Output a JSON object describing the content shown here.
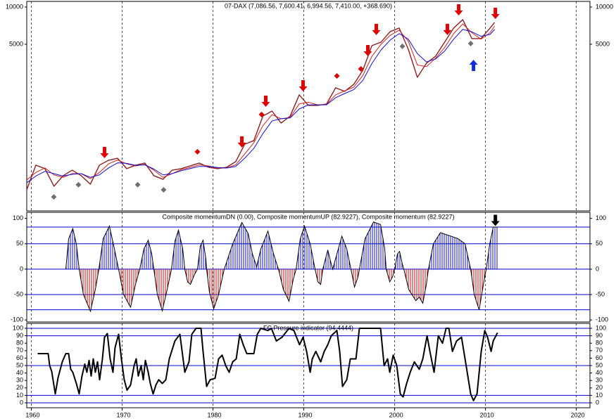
{
  "chart_data": [
    {
      "type": "line",
      "title": "07-DAX (7,086.56, 7,600.41, 6,994.56, 7,410.00, +368.690)",
      "log": true,
      "ylim": [
        225,
        11100
      ],
      "yticks": [
        5000,
        10000
      ],
      "x": [
        1959.5,
        1960.5,
        1961.5,
        1962.5,
        1963.5,
        1964.5,
        1965.5,
        1966.5,
        1967.5,
        1968.5,
        1969.5,
        1970.5,
        1971.5,
        1972.5,
        1973.5,
        1974.5,
        1975.5,
        1976.5,
        1977.5,
        1978.5,
        1979.5,
        1980.5,
        1981.5,
        1982.5,
        1983.5,
        1984.5,
        1985.5,
        1986.5,
        1987.5,
        1988.5,
        1989.5,
        1990.5,
        1991.5,
        1992.5,
        1993.5,
        1994.5,
        1995.5,
        1996.5,
        1997.5,
        1998.5,
        1999.5,
        2000.5,
        2001.5,
        2002.5,
        2003.5,
        2004.5,
        2005.5,
        2006.5,
        2007.5,
        2008.5,
        2009.5,
        2010.5,
        2011.0
      ],
      "series": [
        {
          "color": "#8b2020",
          "values": [
            333,
            527,
            494,
            356,
            433,
            480,
            433,
            370,
            527,
            577,
            600,
            494,
            527,
            548,
            433,
            405,
            480,
            494,
            520,
            548,
            507,
            494,
            507,
            562,
            780,
            832,
            1315,
            1442,
            1154,
            1315,
            1950,
            1603,
            1603,
            1644,
            2224,
            2082,
            2371,
            3083,
            4875,
            5200,
            6320,
            6760,
            4560,
            2704,
            3512,
            4000,
            5200,
            6760,
            7905,
            5550,
            5550,
            6760,
            7500
          ]
        },
        {
          "color": "#d02020",
          "values": [
            400,
            460,
            500,
            440,
            420,
            450,
            450,
            410,
            460,
            540,
            580,
            540,
            520,
            535,
            480,
            420,
            450,
            485,
            505,
            530,
            520,
            500,
            500,
            530,
            650,
            800,
            1100,
            1350,
            1250,
            1280,
            1650,
            1700,
            1620,
            1630,
            1950,
            2100,
            2250,
            2800,
            4000,
            5000,
            5900,
            6500,
            5300,
            3400,
            3300,
            3850,
            4700,
            6100,
            7300,
            6200,
            5500,
            6200,
            7000
          ]
        },
        {
          "color": "#1010d0",
          "values": [
            380,
            430,
            470,
            450,
            430,
            445,
            450,
            420,
            440,
            500,
            550,
            545,
            525,
            530,
            490,
            440,
            450,
            475,
            495,
            515,
            515,
            505,
            500,
            515,
            600,
            720,
            950,
            1200,
            1250,
            1270,
            1500,
            1620,
            1620,
            1620,
            1850,
            2000,
            2150,
            2550,
            3500,
            4500,
            5400,
            6100,
            5500,
            4200,
            3600,
            3800,
            4400,
            5500,
            6600,
            6300,
            5800,
            6000,
            6600
          ]
        }
      ],
      "signals": [
        {
          "shape": "arrow-down",
          "color": "#e00000",
          "x": [
            1968.06,
            1983.18,
            1985.81,
            1989.92,
            1997.98,
            1997.05,
            2005.81,
            2007.05,
            2011.09
          ],
          "values": [
            600,
            731,
            1560,
            2080,
            5930,
            4000,
            5930,
            8550,
            8000
          ]
        },
        {
          "shape": "arrow-up",
          "color": "#1030e0",
          "x": [
            2008.68
          ],
          "values": [
            3750
          ]
        },
        {
          "shape": "diamond",
          "color": "#707070",
          "x": [
            1962.48,
            1965.19,
            1971.71,
            1974.57,
            2000.85,
            2008.37
          ],
          "values": [
            292,
            366,
            366,
            333,
            4810,
            5070
          ]
        },
        {
          "shape": "diamond",
          "color": "#e00000",
          "x": [
            1978.29,
            1985.35,
            1993.64,
            1996.28
          ],
          "values": [
            676,
            1353,
            2773,
            3162
          ]
        }
      ]
    },
    {
      "type": "area",
      "title": "Composite momentumDN (0.00), Composite momentumUP (82.9227), Composite momentum (82.9227)",
      "ylim": [
        -104,
        112
      ],
      "yticks": [
        100,
        50,
        0,
        -50,
        -100
      ],
      "levels": [
        83,
        50,
        0,
        -50,
        -80
      ],
      "level_color": "#0000cc",
      "x": [
        1963.8,
        1964.11,
        1964.57,
        1964.96,
        1965.27,
        1965.74,
        1966.51,
        1967.05,
        1967.44,
        1967.91,
        1968.6,
        1969.15,
        1969.61,
        1970.16,
        1970.93,
        1971.47,
        1971.94,
        1972.4,
        1972.87,
        1973.26,
        1973.49,
        1973.88,
        1974.42,
        1974.96,
        1975.43,
        1975.81,
        1976.2,
        1976.67,
        1976.9,
        1977.21,
        1977.52,
        1977.98,
        1978.29,
        1978.6,
        1978.91,
        1979.22,
        1979.3,
        1979.61,
        1980.08,
        1980.62,
        1981.24,
        1982.17,
        1983.18,
        1983.88,
        1984.34,
        1984.81,
        1985.27,
        1986.05,
        1986.67,
        1987.21,
        1987.75,
        1988.37,
        1988.84,
        1989.15,
        1989.61,
        1990.08,
        1990.7,
        1991.24,
        1991.55,
        1991.86,
        1992.09,
        1992.64,
        1993.02,
        1993.18,
        1993.64,
        1994.19,
        1994.73,
        1995.19,
        1995.58,
        1995.97,
        1996.12,
        1996.74,
        1997.67,
        1998.45,
        1998.91,
        1999.07,
        1999.46,
        1999.77,
        2000.0,
        2000.31,
        2000.54,
        2000.85,
        2001.01,
        2001.55,
        2002.33,
        2002.71,
        2003.1,
        2003.49,
        2003.72,
        2004.26,
        2005.04,
        2006.2,
        2006.98,
        2007.75,
        2008.37,
        2008.76,
        2009.3,
        2009.77,
        2010.08,
        2010.47,
        2010.85,
        2011.32
      ],
      "series": [
        {
          "color": "#000000",
          "up_color": "#1010c0",
          "down_color": "#c01010",
          "values": [
            0,
            60,
            80,
            50,
            0,
            -50,
            -83,
            -40,
            0,
            60,
            85,
            40,
            0,
            -50,
            -75,
            -30,
            0,
            40,
            57,
            30,
            0,
            -50,
            -82,
            -40,
            0,
            55,
            77,
            40,
            0,
            -25,
            -30,
            -10,
            0,
            45,
            57,
            20,
            0,
            -45,
            -78,
            -50,
            0,
            50,
            92,
            70,
            30,
            5,
            40,
            75,
            30,
            0,
            -40,
            -63,
            -20,
            0,
            60,
            85,
            50,
            0,
            -25,
            -30,
            0,
            38,
            10,
            0,
            30,
            65,
            40,
            0,
            -35,
            -15,
            0,
            60,
            93,
            88,
            40,
            0,
            -25,
            -15,
            0,
            30,
            35,
            10,
            0,
            -40,
            -62,
            -55,
            -67,
            -30,
            0,
            50,
            72,
            65,
            60,
            50,
            0,
            -50,
            -80,
            -30,
            0,
            50,
            83,
            83
          ]
        }
      ],
      "signals": [
        {
          "shape": "arrow-down",
          "color": "#000000",
          "x": [
            2011.09
          ],
          "values": [
            85
          ]
        }
      ]
    },
    {
      "type": "line",
      "title": "FC Pressure indicator (94.4444)",
      "ylim": [
        -6.6,
        106.6
      ],
      "yticks": [
        100,
        90,
        80,
        70,
        60,
        50,
        40,
        30,
        20,
        10,
        0
      ],
      "levels": [
        100,
        90,
        50,
        10,
        0
      ],
      "level_color": "#0000cc",
      "xlim": [
        1959.5,
        2021.5
      ],
      "xticks": [
        1960,
        1970,
        1980,
        1990,
        2000,
        2010,
        2020
      ],
      "x": [
        1960.7,
        1961.86,
        1962.02,
        1962.25,
        1962.64,
        1962.95,
        1963.41,
        1963.8,
        1964.11,
        1964.34,
        1964.57,
        1964.96,
        1965.27,
        1965.58,
        1965.89,
        1966.12,
        1966.36,
        1966.59,
        1966.82,
        1967.05,
        1967.29,
        1967.52,
        1967.83,
        1968.06,
        1968.37,
        1968.68,
        1968.99,
        1969.22,
        1969.61,
        1969.92,
        1970.23,
        1970.54,
        1970.93,
        1971.32,
        1971.55,
        1971.78,
        1972.09,
        1972.33,
        1972.56,
        1972.87,
        1973.1,
        1973.41,
        1973.72,
        1974.03,
        1974.42,
        1974.81,
        1975.19,
        1975.81,
        1976.36,
        1976.9,
        1977.36,
        1977.67,
        1978.14,
        1978.68,
        1978.91,
        1979.3,
        1979.69,
        1980.23,
        1980.62,
        1981.01,
        1981.4,
        1981.78,
        1982.17,
        1982.56,
        1982.95,
        1983.33,
        1983.72,
        1984.5,
        1984.88,
        1985.27,
        1986.05,
        1986.43,
        1986.98,
        1987.6,
        1988.37,
        1988.91,
        1989.53,
        1989.92,
        1990.31,
        1990.7,
        1990.93,
        1991.32,
        1991.86,
        1992.25,
        1992.64,
        1993.02,
        1993.64,
        1993.95,
        1994.26,
        1994.73,
        1995.12,
        1995.74,
        1996.12,
        1998.45,
        1998.84,
        1999.22,
        1999.46,
        1999.84,
        2000.23,
        2000.62,
        2000.93,
        2001.32,
        2001.71,
        2002.17,
        2002.71,
        2003.1,
        2003.57,
        2003.88,
        2004.34,
        2004.81,
        2005.27,
        2005.66,
        2005.97,
        2006.36,
        2006.82,
        2007.36,
        2007.75,
        2008.37,
        2008.68,
        2009.07,
        2009.53,
        2009.92,
        2010.23,
        2010.62,
        2010.85,
        2011.32
      ],
      "series": [
        {
          "color": "#000000",
          "values": [
            66,
            66,
            50,
            42,
            12,
            34,
            55,
            66,
            66,
            45,
            41,
            26,
            12,
            36,
            52,
            41,
            57,
            36,
            59,
            41,
            55,
            31,
            59,
            88,
            93,
            59,
            41,
            74,
            92,
            59,
            31,
            17,
            24,
            50,
            59,
            36,
            50,
            31,
            57,
            41,
            26,
            12,
            24,
            31,
            26,
            31,
            59,
            83,
            92,
            41,
            55,
            92,
            100,
            100,
            69,
            22,
            31,
            33,
            59,
            64,
            50,
            41,
            55,
            59,
            92,
            78,
            66,
            66,
            92,
            100,
            97,
            100,
            83,
            88,
            100,
            97,
            78,
            88,
            69,
            41,
            59,
            69,
            55,
            69,
            78,
            90,
            97,
            69,
            22,
            31,
            59,
            59,
            100,
            100,
            50,
            59,
            41,
            64,
            50,
            12,
            8,
            26,
            41,
            55,
            45,
            59,
            90,
            69,
            41,
            90,
            80,
            100,
            100,
            69,
            83,
            88,
            59,
            12,
            3,
            12,
            69,
            97,
            88,
            69,
            83,
            94
          ]
        }
      ]
    }
  ]
}
